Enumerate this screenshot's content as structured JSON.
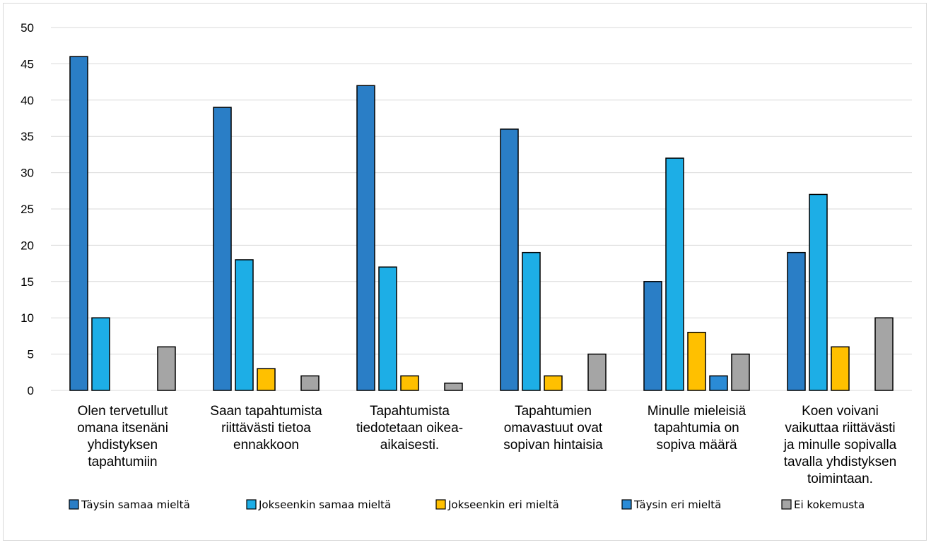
{
  "chart_data": {
    "type": "bar",
    "ylim": [
      0,
      50
    ],
    "yticks": [
      "0",
      "5",
      "10",
      "15",
      "20",
      "25",
      "30",
      "35",
      "40",
      "45",
      "50"
    ],
    "grid": true,
    "legend_position": "bottom",
    "categories": [
      [
        "Olen tervetullut",
        "omana itsenäni",
        "yhdistyksen",
        "tapahtumiin"
      ],
      [
        "Saan tapahtumista",
        "riittävästi tietoa",
        "ennakkoon"
      ],
      [
        "Tapahtumista",
        "tiedotetaan oikea-",
        "aikaisesti."
      ],
      [
        "Tapahtumien",
        "omavastuut ovat",
        "sopivan hintaisia"
      ],
      [
        "Minulle mieleisiä",
        "tapahtumia on",
        "sopiva määrä"
      ],
      [
        "Koen voivani",
        "vaikuttaa riittävästi",
        "ja minulle sopivalla",
        "tavalla yhdistyksen",
        "toimintaan."
      ]
    ],
    "series": [
      {
        "name": "Täysin samaa mieltä",
        "color": "#2a7ec6",
        "values": [
          46,
          39,
          42,
          36,
          15,
          19
        ]
      },
      {
        "name": "Jokseenkin samaa mieltä",
        "color": "#1daee6",
        "values": [
          10,
          18,
          17,
          19,
          32,
          27
        ]
      },
      {
        "name": "Jokseenkin eri mieltä",
        "color": "#ffc000",
        "values": [
          0,
          3,
          2,
          2,
          8,
          6
        ]
      },
      {
        "name": "Täysin eri mieltä",
        "color": "#2a8bd6",
        "values": [
          0,
          0,
          0,
          0,
          2,
          0
        ]
      },
      {
        "name": "Ei kokemusta",
        "color": "#a5a5a5",
        "values": [
          6,
          2,
          1,
          5,
          5,
          10
        ]
      }
    ]
  }
}
